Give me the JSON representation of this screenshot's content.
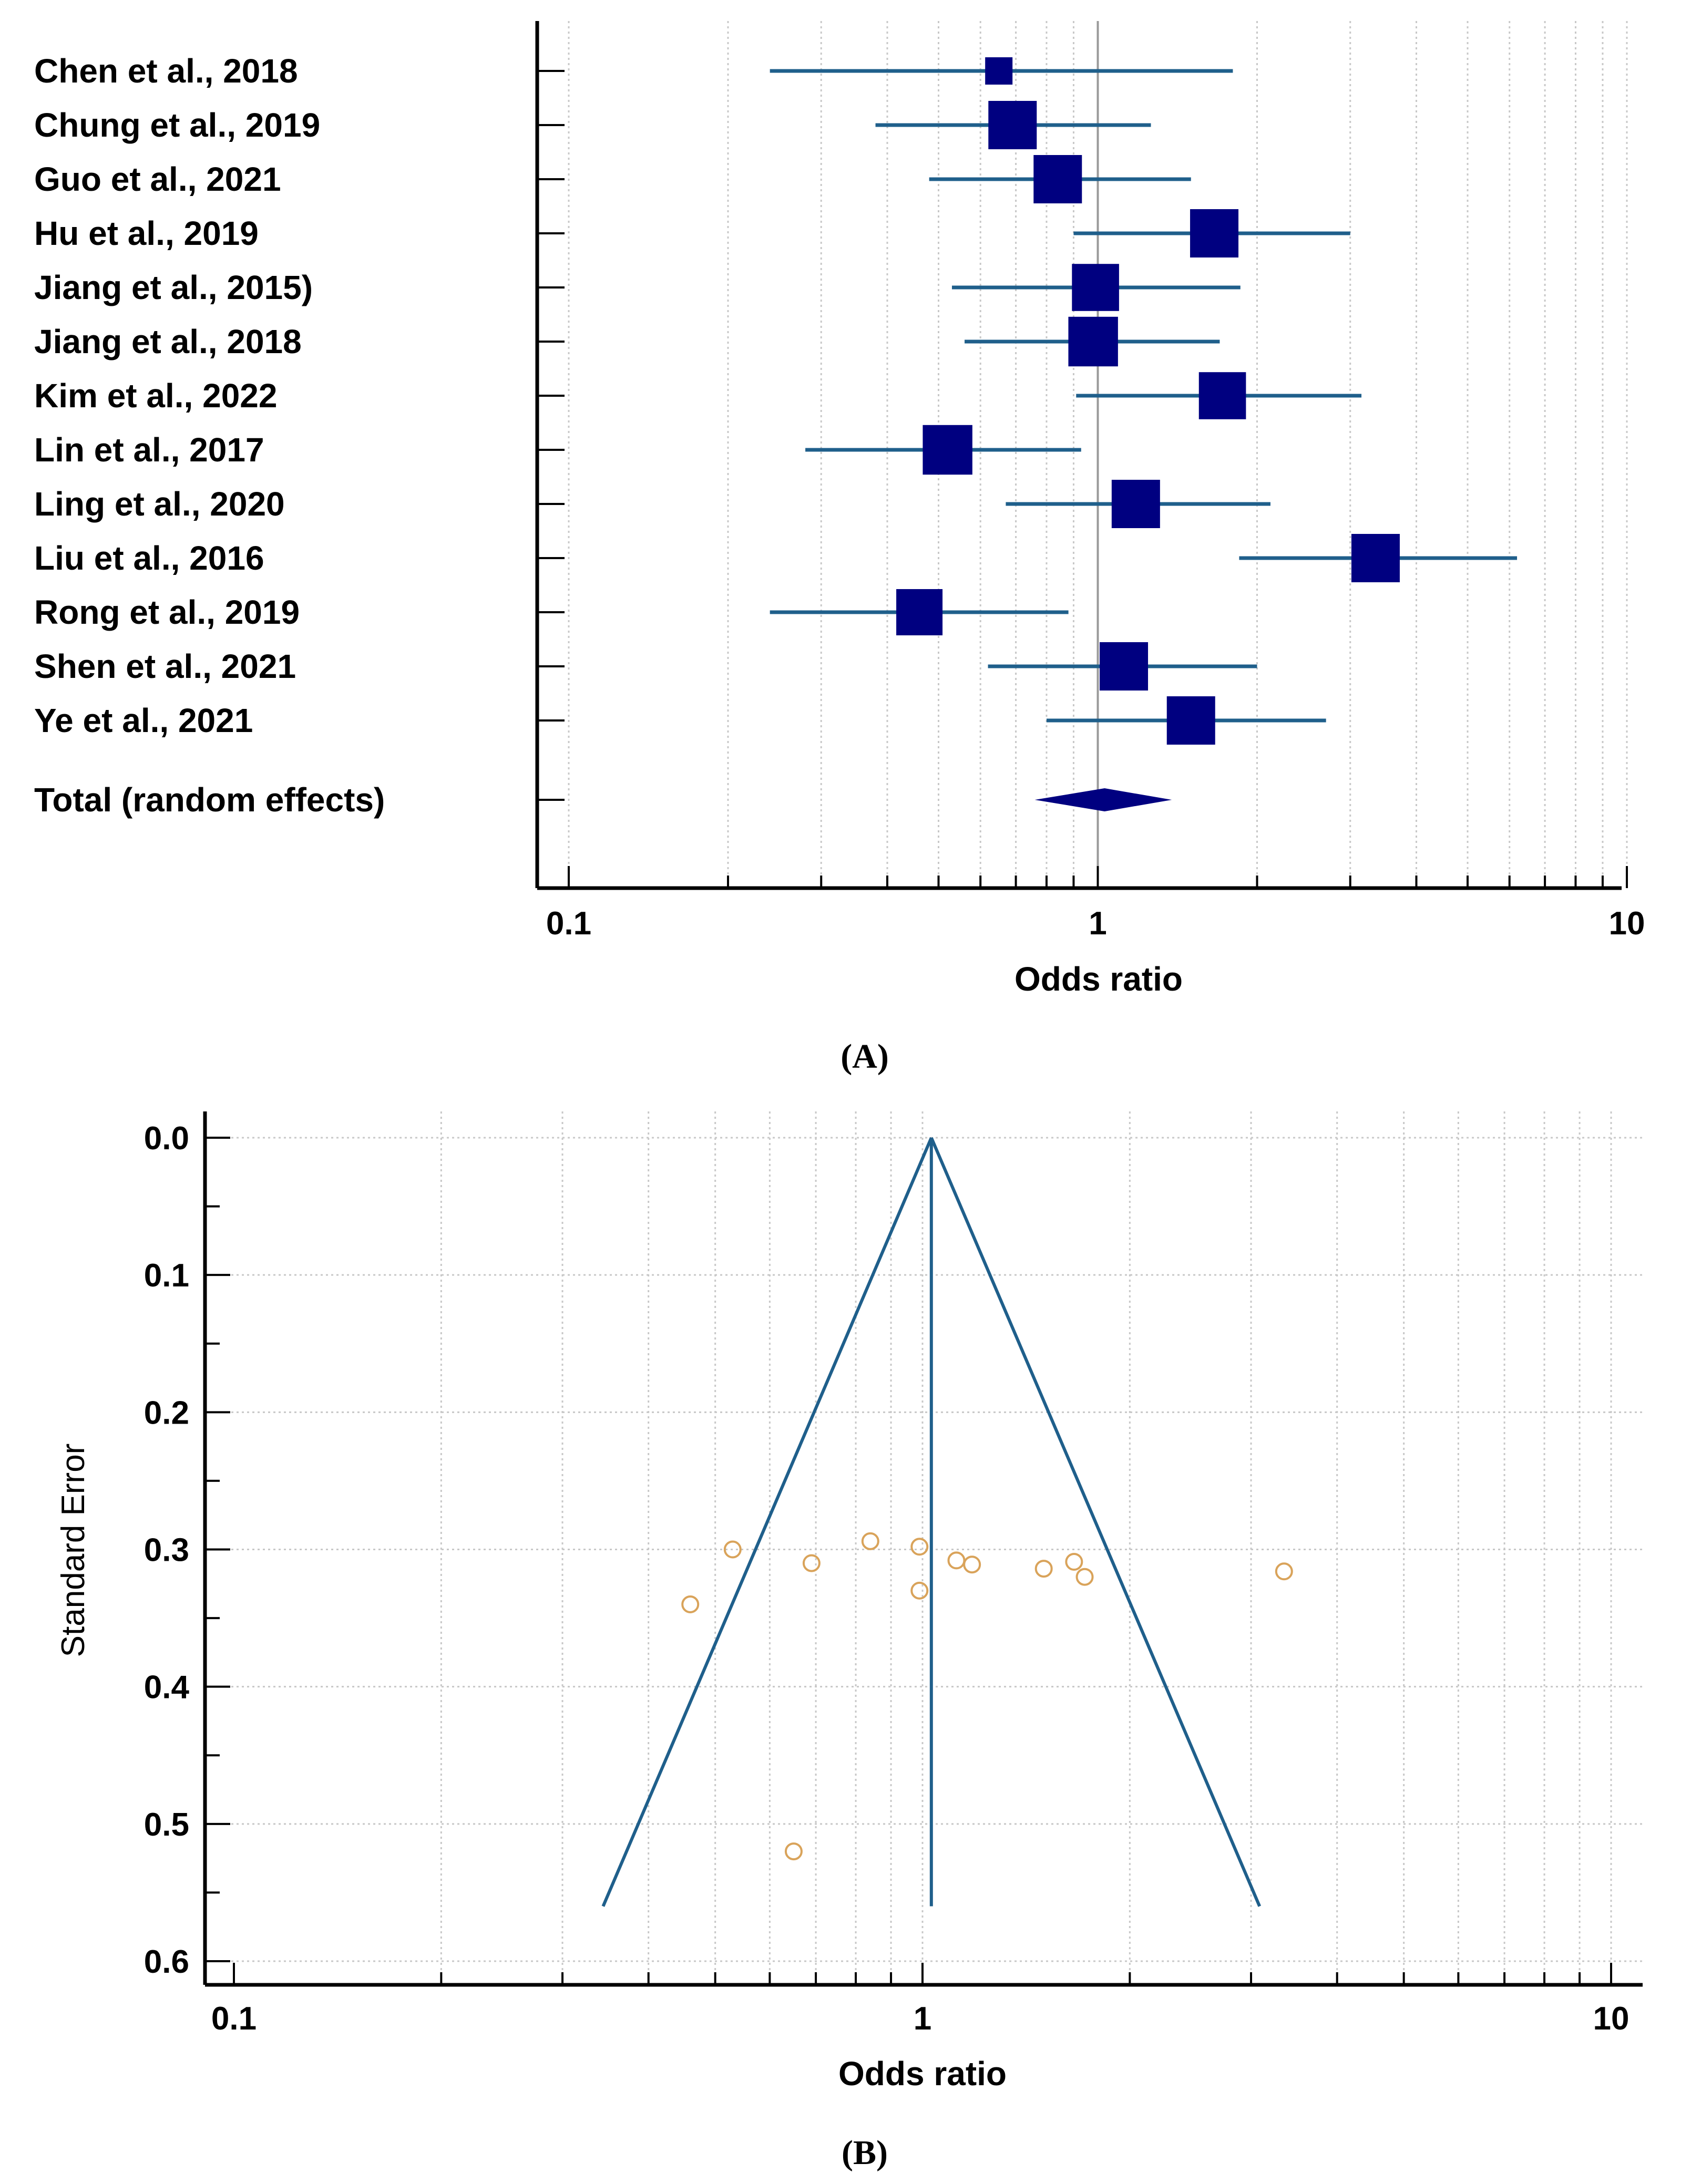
{
  "figure": {
    "panel_a_label": "(A)",
    "panel_b_label": "(B)",
    "colors": {
      "marker": "#000080",
      "ci_line": "#1f5f8b",
      "funnel_line": "#1f5f8b",
      "study_point": "#d9a35a",
      "grid": "#c8c8c8",
      "axis": "#000000"
    }
  },
  "chart_data": [
    {
      "id": "forest",
      "type": "forest",
      "xscale": "log",
      "xlim": [
        0.1,
        10
      ],
      "xlabel": "Odds ratio",
      "xticks": [
        0.1,
        1,
        10
      ],
      "xtick_labels": [
        "0.1",
        "1",
        "10"
      ],
      "null_line": 1,
      "studies": [
        {
          "label": "Chen et al., 2018",
          "or": 0.65,
          "lo": 0.24,
          "hi": 1.8,
          "weight": 0.35
        },
        {
          "label": "Chung et al., 2019",
          "or": 0.69,
          "lo": 0.38,
          "hi": 1.26,
          "weight": 0.85
        },
        {
          "label": "Guo et al., 2021",
          "or": 0.84,
          "lo": 0.48,
          "hi": 1.5,
          "weight": 0.85
        },
        {
          "label": "Hu et al., 2019",
          "or": 1.66,
          "lo": 0.9,
          "hi": 3.0,
          "weight": 0.85
        },
        {
          "label": "Jiang et al., 2015)",
          "or": 0.99,
          "lo": 0.53,
          "hi": 1.86,
          "weight": 0.82
        },
        {
          "label": "Jiang et al., 2018",
          "or": 0.98,
          "lo": 0.56,
          "hi": 1.7,
          "weight": 0.88
        },
        {
          "label": "Kim et al., 2022",
          "or": 1.72,
          "lo": 0.91,
          "hi": 3.15,
          "weight": 0.82
        },
        {
          "label": "Lin et al., 2017",
          "or": 0.52,
          "lo": 0.28,
          "hi": 0.93,
          "weight": 0.88
        },
        {
          "label": "Ling et al., 2020",
          "or": 1.18,
          "lo": 0.67,
          "hi": 2.12,
          "weight": 0.85
        },
        {
          "label": "Liu et al., 2016",
          "or": 3.35,
          "lo": 1.85,
          "hi": 6.2,
          "weight": 0.85
        },
        {
          "label": "Rong et al., 2019",
          "or": 0.46,
          "lo": 0.24,
          "hi": 0.88,
          "weight": 0.8
        },
        {
          "label": "Shen et al., 2021",
          "or": 1.12,
          "lo": 0.62,
          "hi": 2.0,
          "weight": 0.85
        },
        {
          "label": "Ye et al., 2021",
          "or": 1.5,
          "lo": 0.8,
          "hi": 2.7,
          "weight": 0.85
        }
      ],
      "total": {
        "label": "Total (random effects)",
        "or": 1.03,
        "lo": 0.76,
        "hi": 1.38
      }
    },
    {
      "id": "funnel",
      "type": "scatter",
      "xscale": "log",
      "xlim": [
        0.1,
        10
      ],
      "xlabel": "Odds ratio",
      "ylabel": "Standard Error",
      "ylim": [
        0,
        0.6
      ],
      "ydirection": "reversed",
      "xticks": [
        0.1,
        1,
        10
      ],
      "xtick_labels": [
        "0.1",
        "1",
        "10"
      ],
      "yticks": [
        0,
        0.1,
        0.2,
        0.3,
        0.4,
        0.5,
        0.6
      ],
      "ytick_labels": [
        "0.0",
        "0.1",
        "0.2",
        "0.3",
        "0.4",
        "0.5",
        "0.6"
      ],
      "pooled_or": 1.03,
      "funnel_se_max": 0.56,
      "points": [
        {
          "or": 0.46,
          "se": 0.34
        },
        {
          "or": 0.53,
          "se": 0.3
        },
        {
          "or": 0.65,
          "se": 0.52
        },
        {
          "or": 0.69,
          "se": 0.31
        },
        {
          "or": 0.84,
          "se": 0.294
        },
        {
          "or": 0.99,
          "se": 0.298
        },
        {
          "or": 0.99,
          "se": 0.33
        },
        {
          "or": 1.12,
          "se": 0.308
        },
        {
          "or": 1.18,
          "se": 0.311
        },
        {
          "or": 1.5,
          "se": 0.314
        },
        {
          "or": 1.66,
          "se": 0.309
        },
        {
          "or": 1.72,
          "se": 0.32
        },
        {
          "or": 3.35,
          "se": 0.316
        }
      ]
    }
  ]
}
